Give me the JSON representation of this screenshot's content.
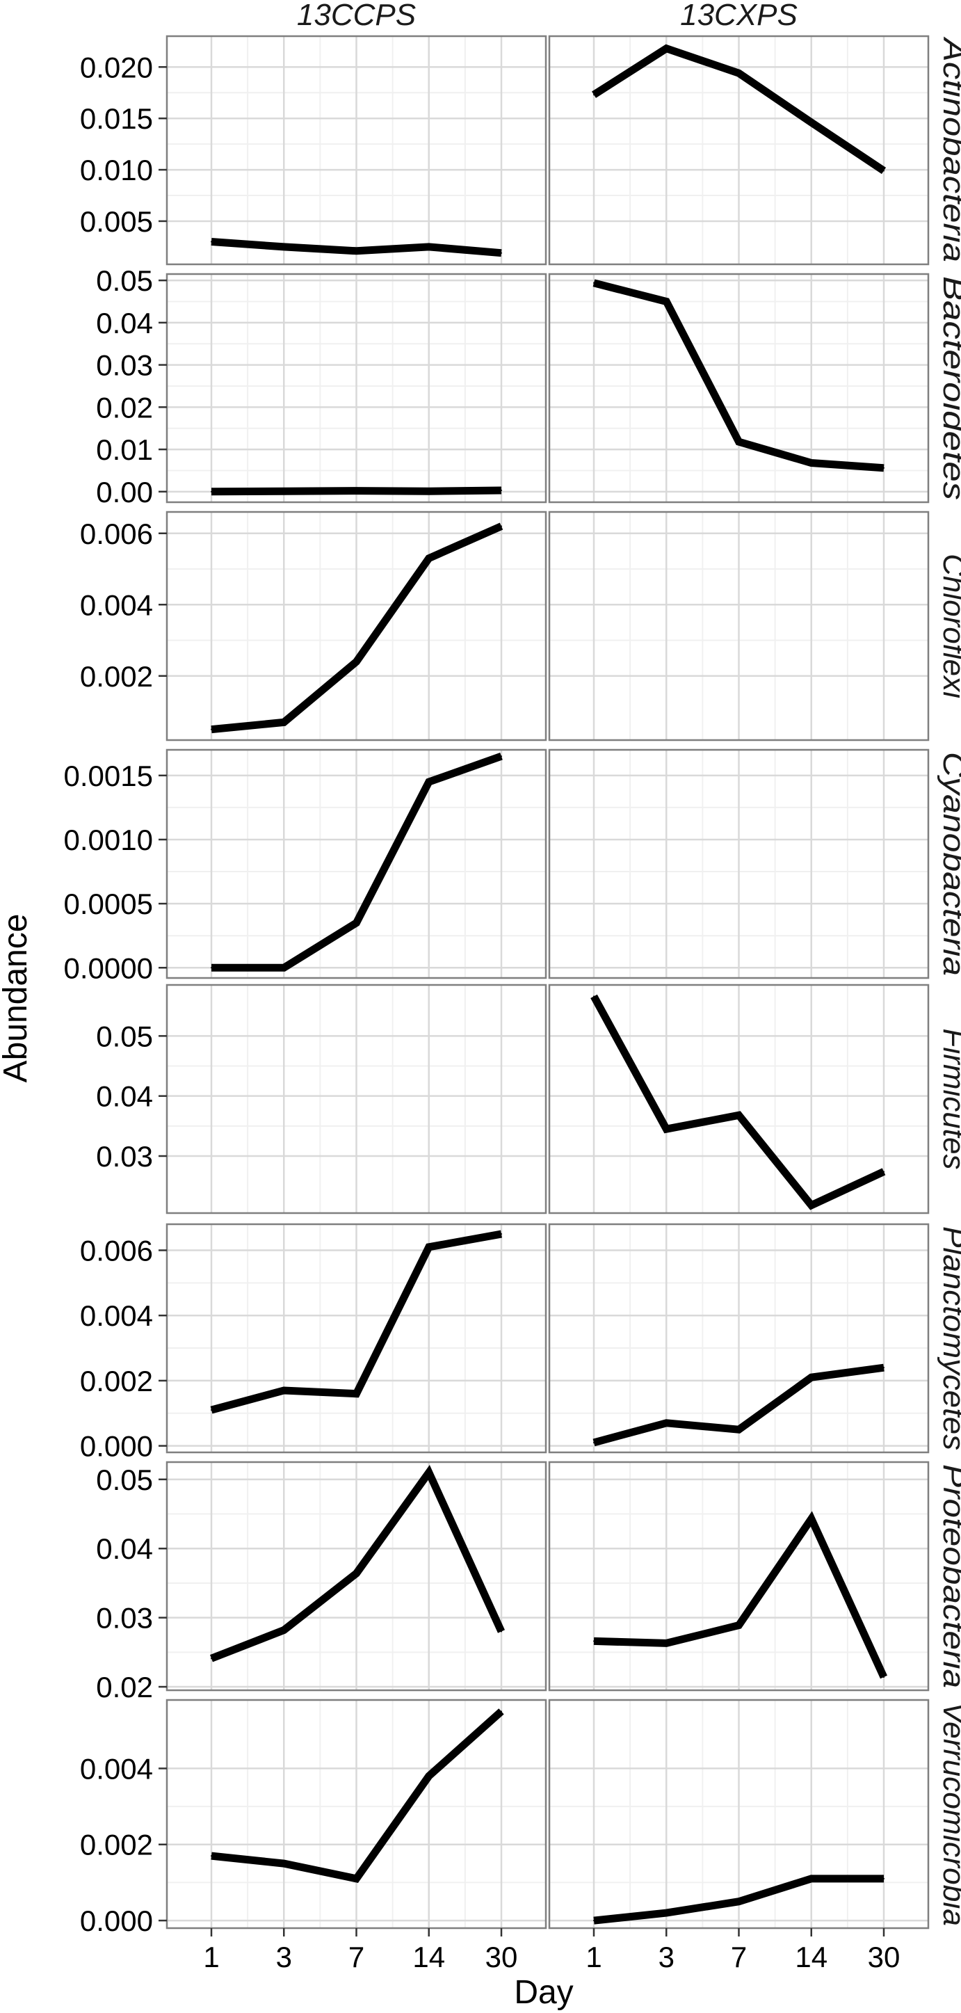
{
  "chart_data": {
    "type": "line",
    "xlabel": "Day",
    "ylabel": "Abundance",
    "x_categories": [
      "1",
      "3",
      "7",
      "14",
      "30"
    ],
    "columns": [
      "13CCPS",
      "13CXPS"
    ],
    "grid": true,
    "legend": "none",
    "colors": {
      "line": "#000000",
      "panel_border": "#7f7f7f",
      "grid_major": "#d9d9d9",
      "grid_minor": "#f0f0f0",
      "strip_text": "#1a1a1a"
    },
    "rows": [
      {
        "name": "Actinobacteria",
        "ylim": [
          0.0008,
          0.023
        ],
        "yticks": [
          0.005,
          0.01,
          0.015,
          0.02
        ],
        "ytick_labels": [
          "0.005",
          "0.010",
          "0.015",
          "0.020"
        ],
        "series": [
          {
            "column": "13CCPS",
            "values": [
              0.003,
              0.0025,
              0.0021,
              0.0025,
              0.0019
            ]
          },
          {
            "column": "13CXPS",
            "values": [
              0.0173,
              0.0218,
              0.0194,
              0.0146,
              0.0099
            ]
          }
        ]
      },
      {
        "name": "Bacteroidetes",
        "ylim": [
          -0.0025,
          0.0515
        ],
        "yticks": [
          0.0,
          0.01,
          0.02,
          0.03,
          0.04,
          0.05
        ],
        "ytick_labels": [
          "0.00",
          "0.01",
          "0.02",
          "0.03",
          "0.04",
          "0.05"
        ],
        "series": [
          {
            "column": "13CCPS",
            "values": [
              0.0,
              0.0001,
              0.0002,
              0.0001,
              0.0003
            ]
          },
          {
            "column": "13CXPS",
            "values": [
              0.0494,
              0.045,
              0.0118,
              0.0068,
              0.0056
            ]
          }
        ]
      },
      {
        "name": "Chloroflexi",
        "ylim": [
          0.0002,
          0.0066
        ],
        "yticks": [
          0.002,
          0.004,
          0.006
        ],
        "ytick_labels": [
          "0.002",
          "0.004",
          "0.006"
        ],
        "series": [
          {
            "column": "13CCPS",
            "values": [
              0.0005,
              0.0007,
              0.0024,
              0.0053,
              0.0062
            ]
          }
        ]
      },
      {
        "name": "Cyanobacteria",
        "ylim": [
          -8e-05,
          0.0017
        ],
        "yticks": [
          0.0,
          0.0005,
          0.001,
          0.0015
        ],
        "ytick_labels": [
          "0.0000",
          "0.0005",
          "0.0010",
          "0.0015"
        ],
        "series": [
          {
            "column": "13CCPS",
            "values": [
              0.0,
              0.0,
              0.00035,
              0.00145,
              0.00165
            ]
          }
        ]
      },
      {
        "name": "Firmicutes",
        "ylim": [
          0.0205,
          0.0585
        ],
        "yticks": [
          0.03,
          0.04,
          0.05
        ],
        "ytick_labels": [
          "0.03",
          "0.04",
          "0.05"
        ],
        "series": [
          {
            "column": "13CXPS",
            "values": [
              0.0566,
              0.0345,
              0.0368,
              0.0218,
              0.0274
            ]
          }
        ]
      },
      {
        "name": "Planctomycetes",
        "ylim": [
          -0.0002,
          0.0068
        ],
        "yticks": [
          0.0,
          0.002,
          0.004,
          0.006
        ],
        "ytick_labels": [
          "0.000",
          "0.002",
          "0.004",
          "0.006"
        ],
        "series": [
          {
            "column": "13CCPS",
            "values": [
              0.0011,
              0.0017,
              0.0016,
              0.0061,
              0.0065
            ]
          },
          {
            "column": "13CXPS",
            "values": [
              0.0001,
              0.0007,
              0.0005,
              0.0021,
              0.0024
            ]
          }
        ]
      },
      {
        "name": "Proteobacteria",
        "ylim": [
          0.0195,
          0.0525
        ],
        "yticks": [
          0.02,
          0.03,
          0.04,
          0.05
        ],
        "ytick_labels": [
          "0.02",
          "0.03",
          "0.04",
          "0.05"
        ],
        "series": [
          {
            "column": "13CCPS",
            "values": [
              0.0241,
              0.0282,
              0.0364,
              0.051,
              0.028
            ]
          },
          {
            "column": "13CXPS",
            "values": [
              0.0266,
              0.0263,
              0.0289,
              0.0443,
              0.0214
            ]
          }
        ]
      },
      {
        "name": "Verrucomicrobia",
        "ylim": [
          -0.0002,
          0.0058
        ],
        "yticks": [
          0.0,
          0.002,
          0.004
        ],
        "ytick_labels": [
          "0.000",
          "0.002",
          "0.004"
        ],
        "series": [
          {
            "column": "13CCPS",
            "values": [
              0.0017,
              0.0015,
              0.0011,
              0.0038,
              0.0055
            ]
          },
          {
            "column": "13CXPS",
            "values": [
              0.0,
              0.0002,
              0.0005,
              0.0011,
              0.0011
            ]
          }
        ]
      }
    ]
  }
}
